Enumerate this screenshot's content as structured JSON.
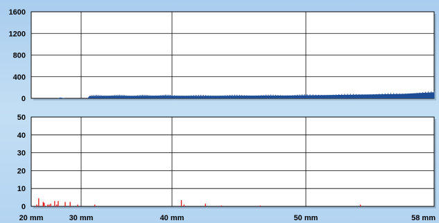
{
  "chart_data": [
    {
      "type": "area",
      "title": "",
      "xlabel": "",
      "ylabel": "",
      "xlim": [
        20,
        58
      ],
      "ylim": [
        0,
        1600
      ],
      "yticks": [
        "1600",
        "1200",
        "800",
        "400",
        "0"
      ],
      "grid": true,
      "series": [
        {
          "color": "#1f4e96",
          "x": [
            25.3,
            25.8,
            26.3,
            27.0,
            30.7,
            30.9,
            33,
            36,
            39,
            42,
            45,
            48,
            51,
            54,
            56,
            57,
            58
          ],
          "y": [
            0,
            14,
            8,
            0,
            0,
            42,
            48,
            46,
            50,
            46,
            50,
            52,
            60,
            72,
            82,
            98,
            112
          ]
        }
      ]
    },
    {
      "type": "bar",
      "title": "",
      "xlabel": "",
      "ylabel": "",
      "xlim": [
        20,
        58
      ],
      "ylim": [
        0,
        50
      ],
      "yticks": [
        "50",
        "40",
        "30",
        "20",
        "10",
        "0"
      ],
      "xticks": [
        "20 mm",
        "30 mm",
        "40 mm",
        "50 mm",
        "58 mm"
      ],
      "xtick_values": [
        20,
        30,
        40,
        50,
        58
      ],
      "grid": true,
      "series": [
        {
          "color": "#dd2222",
          "x": [
            21.1,
            21.5,
            22.4,
            22.6,
            23.3,
            23.6,
            23.9,
            24.7,
            25.1,
            25.4,
            26.8,
            27.8,
            29.3,
            31.5,
            40.7,
            40.9,
            42.5,
            43.7,
            46.6,
            53.4
          ],
          "y": [
            1,
            4.5,
            2.5,
            2,
            1,
            1,
            1.5,
            3,
            1,
            3,
            2.5,
            2.5,
            1,
            1,
            3.5,
            1,
            1.5,
            0.5,
            0.5,
            1
          ]
        }
      ]
    }
  ]
}
